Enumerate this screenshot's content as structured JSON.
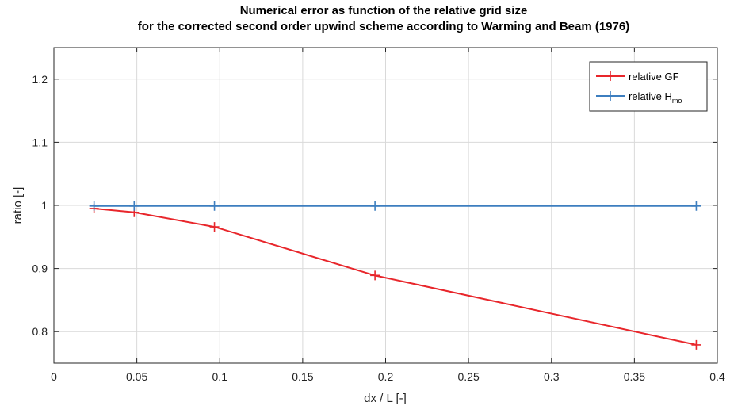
{
  "chart_data": {
    "type": "line",
    "title": [
      "Numerical error as function of the relative grid size",
      "for the corrected second order upwind scheme according to Warming and Beam (1976)"
    ],
    "xlabel": "dx / L [-]",
    "ylabel": "ratio [-]",
    "xlim": [
      0,
      0.4
    ],
    "ylim": [
      0.75,
      1.25
    ],
    "xticks": [
      0,
      0.05,
      0.1,
      0.15,
      0.2,
      0.25,
      0.3,
      0.35,
      0.4
    ],
    "xtick_labels": [
      "0",
      "0.05",
      "0.1",
      "0.15",
      "0.2",
      "0.25",
      "0.3",
      "0.35",
      "0.4"
    ],
    "yticks": [
      0.8,
      0.9,
      1.0,
      1.1,
      1.2
    ],
    "ytick_labels": [
      "0.8",
      "0.9",
      "1",
      "1.1",
      "1.2"
    ],
    "grid": true,
    "legend_position": "top-right",
    "series": [
      {
        "name": "relative GF",
        "color": "#e8262b",
        "marker": "plus",
        "x": [
          0.0242,
          0.0484,
          0.0968,
          0.1936,
          0.3873
        ],
        "y": [
          0.995,
          0.989,
          0.966,
          0.889,
          0.779
        ]
      },
      {
        "name": "relative H",
        "name_subscript": "mo",
        "color": "#3d7ebf",
        "marker": "plus",
        "x": [
          0.0242,
          0.0484,
          0.0968,
          0.1936,
          0.3873
        ],
        "y": [
          0.999,
          0.999,
          0.999,
          0.999,
          0.999
        ]
      }
    ]
  }
}
